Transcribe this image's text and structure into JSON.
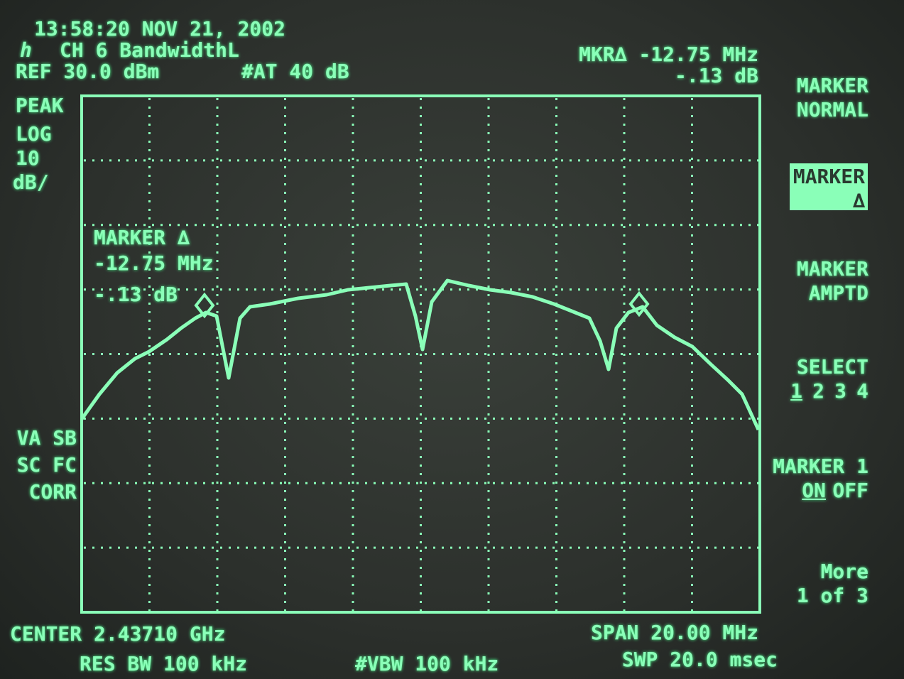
{
  "header": {
    "timestamp": "13:58:20 NOV 21, 2002",
    "title": "CH 6 BandwidthL",
    "reference": "REF 30.0 dBm",
    "attenuation": "#AT 40 dB",
    "marker_delta_frequency": "MKR∆ -12.75 MHz",
    "marker_delta_amplitude": "-.13 dB"
  },
  "left_annotations": [
    "PEAK",
    "LOG",
    "10",
    "dB/"
  ],
  "status_flags": [
    "VA SB",
    "SC FC",
    "CORR"
  ],
  "marker_readout": {
    "label": "MARKER ∆",
    "frequency": "-12.75 MHz",
    "amplitude": "-.13 dB"
  },
  "softkeys": [
    {
      "lines": [
        "MARKER",
        "NORMAL"
      ]
    },
    {
      "lines": [
        "MARKER",
        "∆"
      ]
    },
    {
      "lines": [
        "MARKER",
        "AMPTD"
      ]
    },
    {
      "lines": [
        "SELECT"
      ],
      "options": [
        "1",
        "2",
        "3",
        "4"
      ]
    },
    {
      "lines": [
        "MARKER 1"
      ],
      "options": [
        "ON",
        "OFF"
      ]
    },
    {
      "lines": [
        "More",
        "1 of 3"
      ]
    }
  ],
  "footer": {
    "center": "CENTER 2.43710 GHz",
    "res_bw": "RES BW 100 kHz",
    "vbw": "#VBW 100 kHz",
    "span": "SPAN 20.00 MHz",
    "sweep": "SWP 20.0 msec"
  }
}
